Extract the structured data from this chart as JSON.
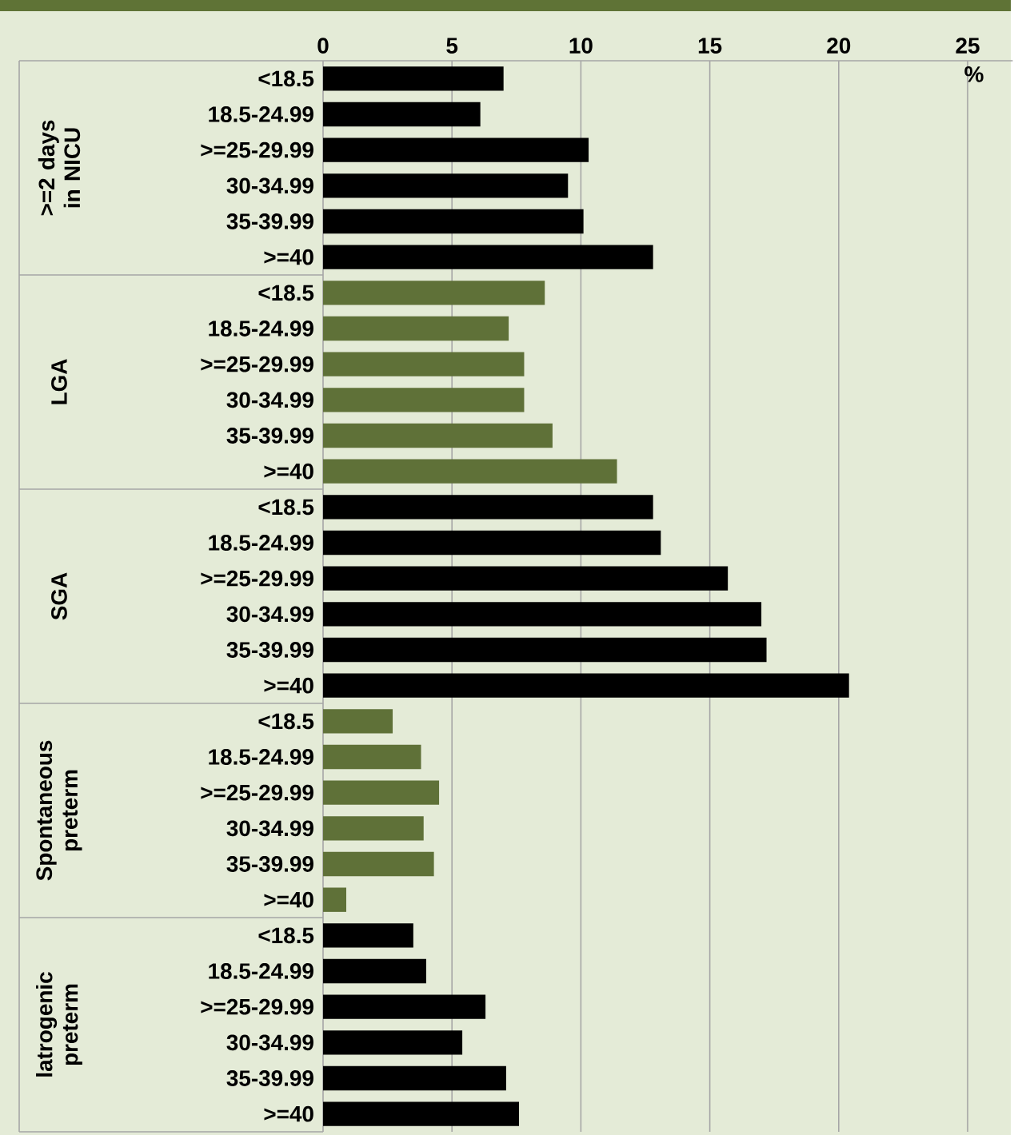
{
  "chart_data": {
    "type": "bar",
    "orientation": "horizontal",
    "xlabel": "%",
    "xlim": [
      0,
      25
    ],
    "xticks": [
      0,
      5,
      10,
      15,
      20,
      25
    ],
    "grid": "x",
    "categories": [
      "<18.5",
      "18.5-24.99",
      ">=25-29.99",
      "30-34.99",
      "35-39.99",
      ">=40",
      "<18.5",
      "18.5-24.99",
      ">=25-29.99",
      "30-34.99",
      "35-39.99",
      ">=40",
      "<18.5",
      "18.5-24.99",
      ">=25-29.99",
      "30-34.99",
      "35-39.99",
      ">=40",
      "<18.5",
      "18.5-24.99",
      ">=25-29.99",
      "30-34.99",
      "35-39.99",
      ">=40",
      "<18.5",
      "18.5-24.99",
      ">=25-29.99",
      "30-34.99",
      "35-39.99",
      ">=40"
    ],
    "values": [
      7.0,
      6.1,
      10.3,
      9.5,
      10.1,
      12.8,
      8.6,
      7.2,
      7.8,
      7.8,
      8.9,
      11.4,
      12.8,
      13.1,
      15.7,
      17.0,
      17.2,
      20.4,
      2.7,
      3.8,
      4.5,
      3.9,
      4.3,
      0.9,
      3.5,
      4.0,
      6.3,
      5.4,
      7.1,
      7.6
    ],
    "colors": [
      "#000000",
      "#000000",
      "#000000",
      "#000000",
      "#000000",
      "#000000",
      "#5f7138",
      "#5f7138",
      "#5f7138",
      "#5f7138",
      "#5f7138",
      "#5f7138",
      "#000000",
      "#000000",
      "#000000",
      "#000000",
      "#000000",
      "#000000",
      "#5f7138",
      "#5f7138",
      "#5f7138",
      "#5f7138",
      "#5f7138",
      "#5f7138",
      "#000000",
      "#000000",
      "#000000",
      "#000000",
      "#000000",
      "#000000"
    ],
    "annotations": [
      ">=2 days in NICU",
      "LGA",
      "SGA",
      "Spontaneous preterm",
      "latrogenic preterm"
    ]
  }
}
